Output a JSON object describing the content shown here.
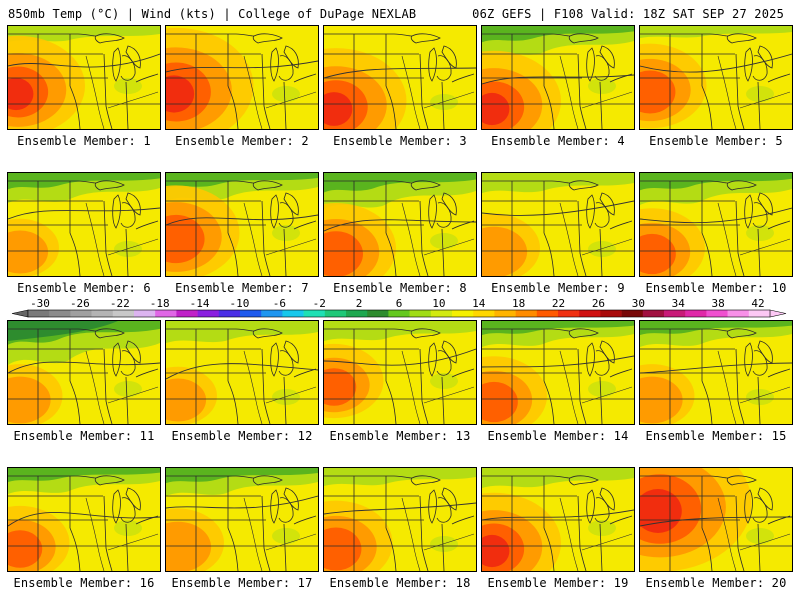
{
  "header": {
    "left": "850mb Temp (°C) | Wind (kts) | College of DuPage NEXLAB",
    "right": "06Z GEFS | F108 Valid: 18Z SAT SEP 27 2025"
  },
  "members": [
    {
      "label": "Ensemble Member: 1",
      "warm": 0.6,
      "cool": 0.2,
      "hotspot": "west"
    },
    {
      "label": "Ensemble Member: 2",
      "warm": 0.75,
      "cool": 0.05,
      "hotspot": "west"
    },
    {
      "label": "Ensemble Member: 3",
      "warm": 0.65,
      "cool": 0.05,
      "hotspot": "southwest"
    },
    {
      "label": "Ensemble Member: 4",
      "warm": 0.6,
      "cool": 0.55,
      "hotspot": "southwest"
    },
    {
      "label": "Ensemble Member: 5",
      "warm": 0.45,
      "cool": 0.1,
      "hotspot": "west"
    },
    {
      "label": "Ensemble Member: 6",
      "warm": 0.2,
      "cool": 0.55,
      "hotspot": "southwest"
    },
    {
      "label": "Ensemble Member: 7",
      "warm": 0.55,
      "cool": 0.5,
      "hotspot": "west"
    },
    {
      "label": "Ensemble Member: 8",
      "warm": 0.5,
      "cool": 0.7,
      "hotspot": "southwest"
    },
    {
      "label": "Ensemble Member: 9",
      "warm": 0.3,
      "cool": 0.3,
      "hotspot": "southwest"
    },
    {
      "label": "Ensemble Member: 10",
      "warm": 0.4,
      "cool": 0.6,
      "hotspot": "southwest"
    },
    {
      "label": "Ensemble Member: 11",
      "warm": 0.25,
      "cool": 0.9,
      "hotspot": "southwest"
    },
    {
      "label": "Ensemble Member: 12",
      "warm": 0.2,
      "cool": 0.35,
      "hotspot": "southwest"
    },
    {
      "label": "Ensemble Member: 13",
      "warm": 0.35,
      "cool": 0.3,
      "hotspot": "west"
    },
    {
      "label": "Ensemble Member: 14",
      "warm": 0.4,
      "cool": 0.45,
      "hotspot": "southwest"
    },
    {
      "label": "Ensemble Member: 15",
      "warm": 0.25,
      "cool": 0.45,
      "hotspot": "southwest"
    },
    {
      "label": "Ensemble Member: 16",
      "warm": 0.35,
      "cool": 0.45,
      "hotspot": "southwest"
    },
    {
      "label": "Ensemble Member: 17",
      "warm": 0.3,
      "cool": 0.5,
      "hotspot": "southwest"
    },
    {
      "label": "Ensemble Member: 18",
      "warm": 0.45,
      "cool": 0.25,
      "hotspot": "southwest"
    },
    {
      "label": "Ensemble Member: 19",
      "warm": 0.6,
      "cool": 0.3,
      "hotspot": "southwest"
    },
    {
      "label": "Ensemble Member: 20",
      "warm": 0.95,
      "cool": 0.0,
      "hotspot": "northwest"
    }
  ],
  "colorbar": {
    "tick_labels": [
      "-30",
      "-26",
      "-22",
      "-18",
      "-14",
      "-10",
      "-6",
      "-2",
      "2",
      "6",
      "10",
      "14",
      "18",
      "22",
      "26",
      "30",
      "34",
      "38",
      "42"
    ],
    "colors": [
      "#7a7a7a",
      "#8c8c8c",
      "#a0a0a0",
      "#b4b4b4",
      "#c8c8c8",
      "#dcb4f0",
      "#e066e6",
      "#c020c8",
      "#8a1ee0",
      "#4b2ee6",
      "#1e5aee",
      "#1e96f0",
      "#16c8ec",
      "#1ee0b4",
      "#1ec878",
      "#1ea850",
      "#2e8c2e",
      "#64c81e",
      "#a0dc14",
      "#d2ea10",
      "#f5f000",
      "#ffd700",
      "#ffb400",
      "#ff8c00",
      "#ff5a00",
      "#f03010",
      "#d01010",
      "#a80a0a",
      "#780808",
      "#a01040",
      "#c81a78",
      "#e028a8",
      "#f050d0",
      "#f890e8",
      "#fcc8f4"
    ]
  },
  "map_colors": {
    "base": "#f5ea00",
    "light_green": "#b4dc14",
    "green": "#5ab41e",
    "dark_green": "#2e8c2e",
    "light_orange": "#ffc800",
    "orange": "#ff9600",
    "red_orange": "#ff5a00",
    "red": "#f02810",
    "line": "#2a2a2a"
  }
}
